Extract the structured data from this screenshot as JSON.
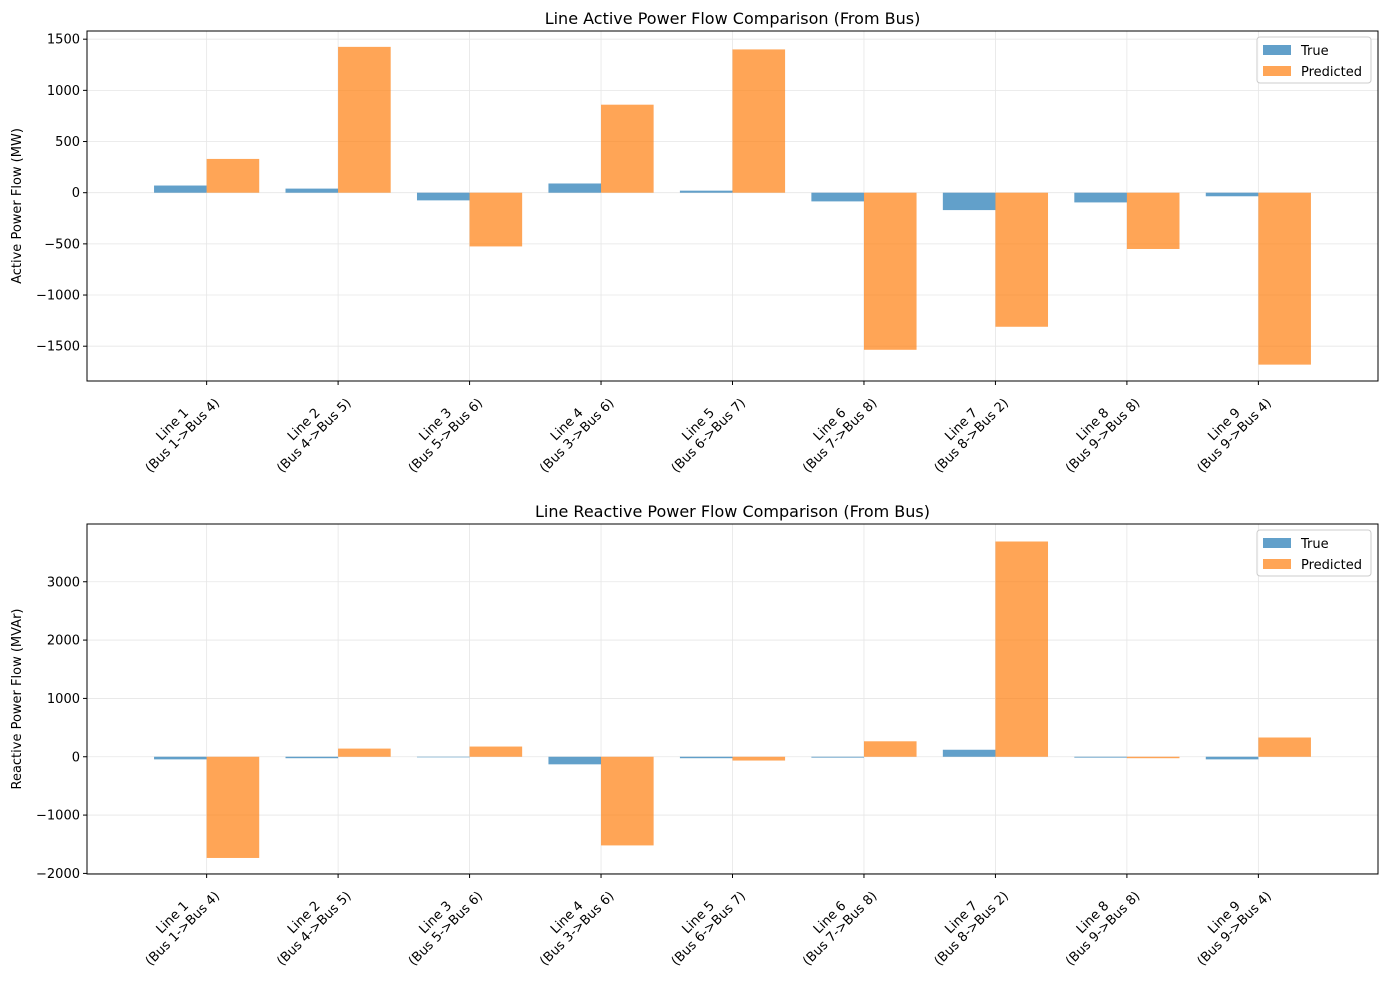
{
  "chart_data": [
    {
      "type": "bar",
      "title": "Line Active Power Flow Comparison (From Bus)",
      "xlabel": "",
      "ylabel": "Active Power Flow (MW)",
      "ylim": [
        -1840,
        1580
      ],
      "yticks": [
        -1500,
        -1000,
        -500,
        0,
        500,
        1000,
        1500
      ],
      "grid": true,
      "legend": "top-right",
      "categories": [
        [
          "Line 1",
          "(Bus 1->Bus 4)"
        ],
        [
          "Line 2",
          "(Bus 4->Bus 5)"
        ],
        [
          "Line 3",
          "(Bus 5->Bus 6)"
        ],
        [
          "Line 4",
          "(Bus 3->Bus 6)"
        ],
        [
          "Line 5",
          "(Bus 6->Bus 7)"
        ],
        [
          "Line 6",
          "(Bus 7->Bus 8)"
        ],
        [
          "Line 7",
          "(Bus 8->Bus 2)"
        ],
        [
          "Line 8",
          "(Bus 9->Bus 8)"
        ],
        [
          "Line 9",
          "(Bus 9->Bus 4)"
        ]
      ],
      "series": [
        {
          "name": "True",
          "color": "#1f77b4",
          "values": [
            70,
            40,
            -75,
            90,
            20,
            -85,
            -170,
            -95,
            -35
          ]
        },
        {
          "name": "Predicted",
          "color": "#ff7f0e",
          "values": [
            330,
            1425,
            -525,
            860,
            1400,
            -1535,
            -1310,
            -550,
            -1680
          ]
        }
      ]
    },
    {
      "type": "bar",
      "title": "Line Reactive Power Flow Comparison (From Bus)",
      "xlabel": "",
      "ylabel": "Reactive Power Flow (MVAr)",
      "ylim": [
        -2010,
        3990
      ],
      "yticks": [
        -2000,
        -1000,
        0,
        1000,
        2000,
        3000
      ],
      "grid": true,
      "legend": "top-right",
      "categories": [
        [
          "Line 1",
          "(Bus 1->Bus 4)"
        ],
        [
          "Line 2",
          "(Bus 4->Bus 5)"
        ],
        [
          "Line 3",
          "(Bus 5->Bus 6)"
        ],
        [
          "Line 4",
          "(Bus 3->Bus 6)"
        ],
        [
          "Line 5",
          "(Bus 6->Bus 7)"
        ],
        [
          "Line 6",
          "(Bus 7->Bus 8)"
        ],
        [
          "Line 7",
          "(Bus 8->Bus 2)"
        ],
        [
          "Line 8",
          "(Bus 9->Bus 8)"
        ],
        [
          "Line 9",
          "(Bus 9->Bus 4)"
        ]
      ],
      "series": [
        {
          "name": "True",
          "color": "#1f77b4",
          "values": [
            -45,
            -25,
            -10,
            -130,
            -25,
            -15,
            120,
            -15,
            -45
          ]
        },
        {
          "name": "Predicted",
          "color": "#ff7f0e",
          "values": [
            -1735,
            140,
            175,
            -1520,
            -65,
            265,
            3690,
            -25,
            330
          ]
        }
      ]
    }
  ]
}
